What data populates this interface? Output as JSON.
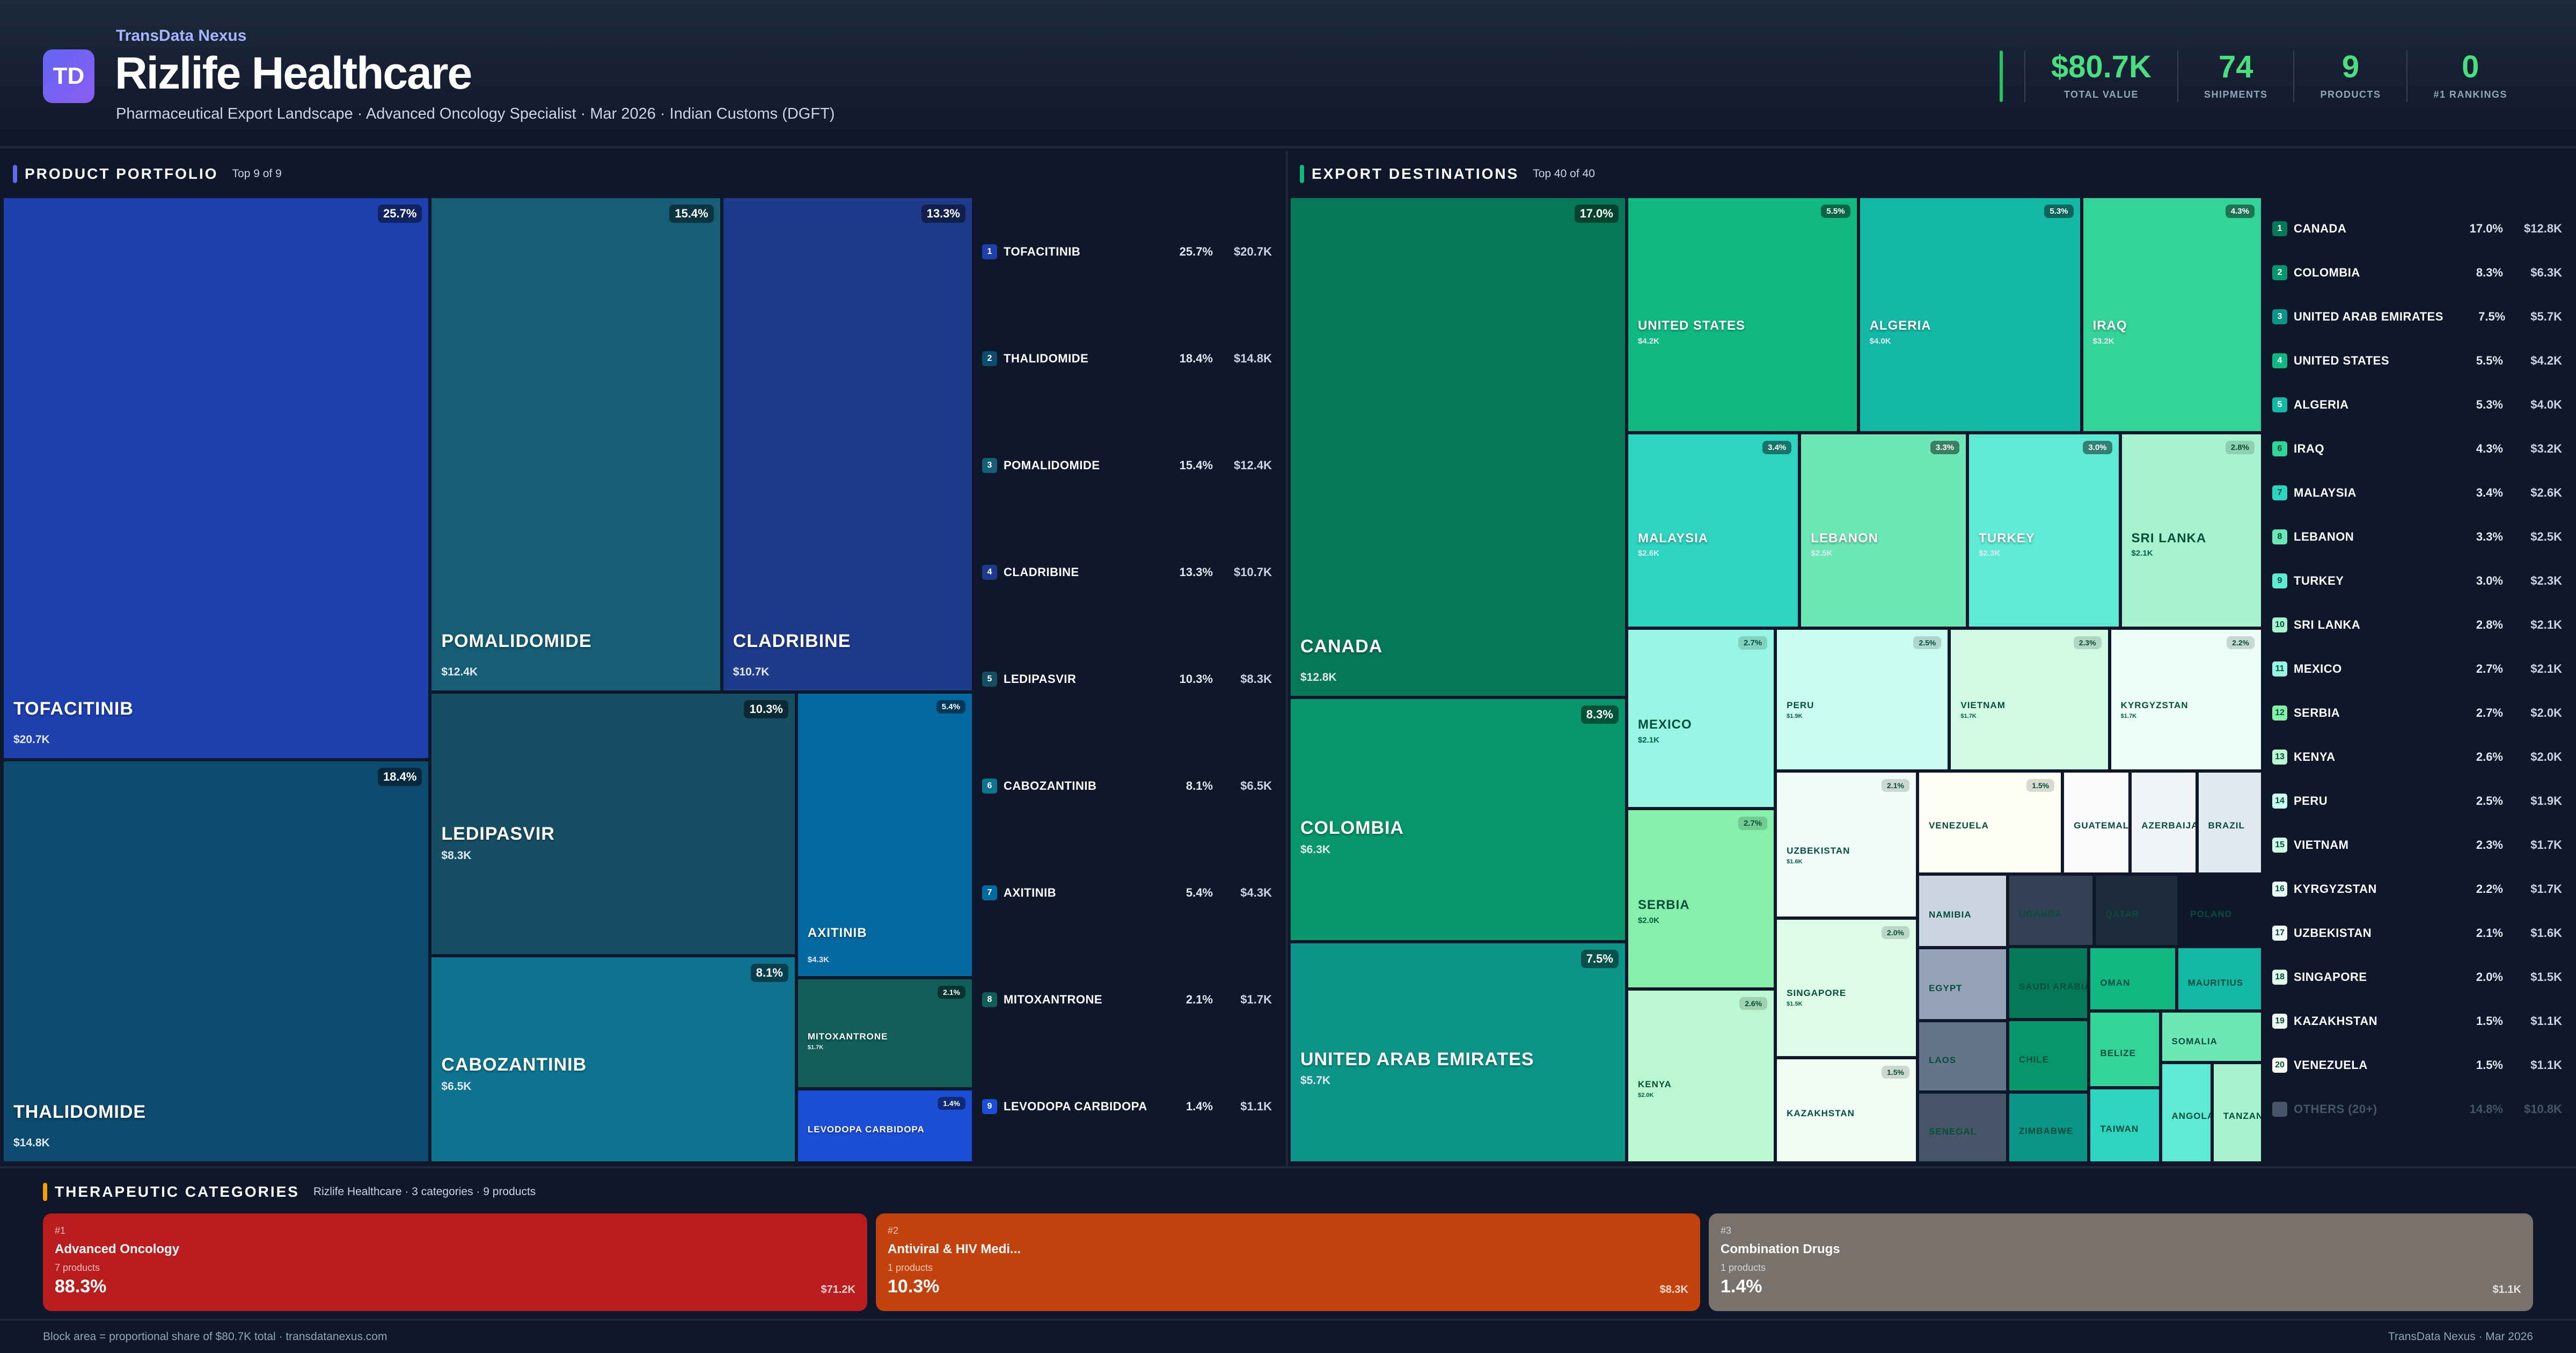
{
  "header": {
    "logo_text": "TD",
    "brand": "TransData Nexus",
    "title": "Rizlife Healthcare",
    "subtitle": "Pharmaceutical Export Landscape · Advanced Oncology Specialist · Mar 2026 · Indian Customs (DGFT)",
    "accent_color": "#22c55e",
    "kpis": [
      {
        "value": "$80.7K",
        "label": "TOTAL VALUE"
      },
      {
        "value": "74",
        "label": "SHIPMENTS"
      },
      {
        "value": "9",
        "label": "PRODUCTS"
      },
      {
        "value": "0",
        "label": "#1 RANKINGS"
      }
    ]
  },
  "products_panel": {
    "title": "PRODUCT PORTFOLIO",
    "subtitle": "Top 9 of 9",
    "accent_color": "#6366f1"
  },
  "destinations_panel": {
    "title": "EXPORT DESTINATIONS",
    "subtitle": "Top 40 of 40",
    "accent_color": "#10b981"
  },
  "chart_data": [
    {
      "type": "treemap",
      "title": "PRODUCT PORTFOLIO",
      "subtitle": "Top 9 of 9",
      "items": [
        {
          "rank": 1,
          "name": "TOFACITINIB",
          "pct": "25.7%",
          "share": 25.7,
          "value": "$20.7K",
          "value_k": 20.7,
          "color": "#1e40af"
        },
        {
          "rank": 2,
          "name": "THALIDOMIDE",
          "pct": "18.4%",
          "share": 18.4,
          "value": "$14.8K",
          "value_k": 14.8,
          "color": "#0c4a6e"
        },
        {
          "rank": 3,
          "name": "POMALIDOMIDE",
          "pct": "15.4%",
          "share": 15.4,
          "value": "$12.4K",
          "value_k": 12.4,
          "color": "#155e75"
        },
        {
          "rank": 4,
          "name": "CLADRIBINE",
          "pct": "13.3%",
          "share": 13.3,
          "value": "$10.7K",
          "value_k": 10.7,
          "color": "#1e3a8a"
        },
        {
          "rank": 5,
          "name": "LEDIPASVIR",
          "pct": "10.3%",
          "share": 10.3,
          "value": "$8.3K",
          "value_k": 8.3,
          "color": "#164e63"
        },
        {
          "rank": 6,
          "name": "CABOZANTINIB",
          "pct": "8.1%",
          "share": 8.1,
          "value": "$6.5K",
          "value_k": 6.5,
          "color": "#0e7490"
        },
        {
          "rank": 7,
          "name": "AXITINIB",
          "pct": "5.4%",
          "share": 5.4,
          "value": "$4.3K",
          "value_k": 4.3,
          "color": "#0369a1"
        },
        {
          "rank": 8,
          "name": "MITOXANTRONE",
          "pct": "2.1%",
          "share": 2.1,
          "value": "$1.7K",
          "value_k": 1.7,
          "color": "#115e59"
        },
        {
          "rank": 9,
          "name": "LEVODOPA CARBIDOPA",
          "pct": "1.4%",
          "share": 1.4,
          "value": "$1.1K",
          "value_k": 1.1,
          "color": "#1d4ed8"
        }
      ]
    },
    {
      "type": "treemap",
      "title": "EXPORT DESTINATIONS",
      "subtitle": "Top 40 of 40",
      "items": [
        {
          "rank": 1,
          "name": "CANADA",
          "pct": "17.0%",
          "share": 17.0,
          "value": "$12.8K",
          "value_k": 12.8,
          "color": "#047857"
        },
        {
          "rank": 2,
          "name": "COLOMBIA",
          "pct": "8.3%",
          "share": 8.3,
          "value": "$6.3K",
          "value_k": 6.3,
          "color": "#059669"
        },
        {
          "rank": 3,
          "name": "UNITED ARAB EMIRATES",
          "pct": "7.5%",
          "share": 7.5,
          "value": "$5.7K",
          "value_k": 5.7,
          "color": "#0d9488"
        },
        {
          "rank": 4,
          "name": "UNITED STATES",
          "pct": "5.5%",
          "share": 5.5,
          "value": "$4.2K",
          "value_k": 4.2,
          "color": "#10b981"
        },
        {
          "rank": 5,
          "name": "ALGERIA",
          "pct": "5.3%",
          "share": 5.3,
          "value": "$4.0K",
          "value_k": 4.0,
          "color": "#14b8a6"
        },
        {
          "rank": 6,
          "name": "IRAQ",
          "pct": "4.3%",
          "share": 4.3,
          "value": "$3.2K",
          "value_k": 3.2,
          "color": "#34d399"
        },
        {
          "rank": 7,
          "name": "MALAYSIA",
          "pct": "3.4%",
          "share": 3.4,
          "value": "$2.6K",
          "value_k": 2.6,
          "color": "#2dd4bf"
        },
        {
          "rank": 8,
          "name": "LEBANON",
          "pct": "3.3%",
          "share": 3.3,
          "value": "$2.5K",
          "value_k": 2.5,
          "color": "#6ee7b7"
        },
        {
          "rank": 9,
          "name": "TURKEY",
          "pct": "3.0%",
          "share": 3.0,
          "value": "$2.3K",
          "value_k": 2.3,
          "color": "#5eead4"
        },
        {
          "rank": 10,
          "name": "SRI LANKA",
          "pct": "2.8%",
          "share": 2.8,
          "value": "$2.1K",
          "value_k": 2.1,
          "color": "#a7f3d0"
        },
        {
          "rank": 11,
          "name": "MEXICO",
          "pct": "2.7%",
          "share": 2.7,
          "value": "$2.1K",
          "value_k": 2.1,
          "color": "#99f6e4"
        },
        {
          "rank": 12,
          "name": "SERBIA",
          "pct": "2.7%",
          "share": 2.7,
          "value": "$2.0K",
          "value_k": 2.0,
          "color": "#86efac"
        },
        {
          "rank": 13,
          "name": "KENYA",
          "pct": "2.6%",
          "share": 2.6,
          "value": "$2.0K",
          "value_k": 2.0,
          "color": "#bbf7d0"
        },
        {
          "rank": 14,
          "name": "PERU",
          "pct": "2.5%",
          "share": 2.5,
          "value": "$1.9K",
          "value_k": 1.9,
          "color": "#ccfbf1"
        },
        {
          "rank": 15,
          "name": "VIETNAM",
          "pct": "2.3%",
          "share": 2.3,
          "value": "$1.7K",
          "value_k": 1.7,
          "color": "#d1fae5"
        },
        {
          "rank": 16,
          "name": "KYRGYZSTAN",
          "pct": "2.2%",
          "share": 2.2,
          "value": "$1.7K",
          "value_k": 1.7,
          "color": "#ecfdf5"
        },
        {
          "rank": 17,
          "name": "UZBEKISTAN",
          "pct": "2.1%",
          "share": 2.1,
          "value": "$1.6K",
          "value_k": 1.6,
          "color": "#f0fdfa"
        },
        {
          "rank": 18,
          "name": "SINGAPORE",
          "pct": "2.0%",
          "share": 2.0,
          "value": "$1.5K",
          "value_k": 1.5,
          "color": "#dcfce7"
        },
        {
          "rank": 19,
          "name": "KAZAKHSTAN",
          "pct": "1.5%",
          "share": 1.5,
          "value": "$1.1K",
          "value_k": 1.1,
          "color": "#f0fdf4"
        },
        {
          "rank": 20,
          "name": "VENEZUELA",
          "pct": "1.5%",
          "share": 1.5,
          "value": "$1.1K",
          "value_k": 1.1,
          "color": "#fefff5"
        },
        {
          "rank": 21,
          "name": "GUATEMALA",
          "color": "#f8fafc"
        },
        {
          "rank": 22,
          "name": "AZERBAIJAN",
          "color": "#f1f5f9"
        },
        {
          "rank": 23,
          "name": "BRAZIL",
          "color": "#e2e8f0"
        },
        {
          "rank": 24,
          "name": "NAMIBIA",
          "color": "#cbd5e1"
        },
        {
          "rank": 25,
          "name": "EGYPT",
          "color": "#94a3b8"
        },
        {
          "rank": 26,
          "name": "LAOS",
          "color": "#64748b"
        },
        {
          "rank": 27,
          "name": "SENEGAL",
          "color": "#475569"
        },
        {
          "rank": 28,
          "name": "UGANDA",
          "color": "#334155"
        },
        {
          "rank": 29,
          "name": "QATAR",
          "color": "#1e293b"
        },
        {
          "rank": 30,
          "name": "POLAND",
          "color": "#0f172a"
        },
        {
          "rank": 31,
          "name": "SAUDI ARABIA",
          "color": "#047857"
        },
        {
          "rank": 32,
          "name": "CHILE",
          "color": "#059669"
        },
        {
          "rank": 33,
          "name": "ZIMBABWE",
          "color": "#0d9488"
        },
        {
          "rank": 34,
          "name": "OMAN",
          "color": "#10b981"
        },
        {
          "rank": 35,
          "name": "MAURITIUS",
          "color": "#14b8a6"
        },
        {
          "rank": 36,
          "name": "BELIZE",
          "color": "#34d399"
        },
        {
          "rank": 37,
          "name": "TAIWAN",
          "color": "#2dd4bf"
        },
        {
          "rank": 38,
          "name": "SOMALIA",
          "color": "#6ee7b7"
        },
        {
          "rank": 39,
          "name": "ANGOLA",
          "color": "#5eead4"
        },
        {
          "rank": 40,
          "name": "TANZANIA",
          "color": "#a7f3d0"
        }
      ],
      "others": {
        "name": "OTHERS (20+)",
        "pct": "14.8%",
        "value": "$10.8K"
      }
    }
  ],
  "categories_section": {
    "title": "THERAPEUTIC CATEGORIES",
    "subtitle": "Rizlife Healthcare · 3 categories · 9 products",
    "accent_color": "#f59e0b",
    "cards": [
      {
        "rank": "#1",
        "name": "Advanced Oncology",
        "count": "7 products",
        "pct": "88.3%",
        "value": "$71.2K",
        "color": "#b91c1c"
      },
      {
        "rank": "#2",
        "name": "Antiviral & HIV Medi...",
        "count": "1 products",
        "pct": "10.3%",
        "value": "$8.3K",
        "color": "#c2410c"
      },
      {
        "rank": "#3",
        "name": "Combination Drugs",
        "count": "1 products",
        "pct": "1.4%",
        "value": "$1.1K",
        "color": "#78716c"
      }
    ]
  },
  "footer": {
    "left": "Block area = proportional share of $80.7K total · transdatanexus.com",
    "right": "TransData Nexus · Mar 2026"
  }
}
